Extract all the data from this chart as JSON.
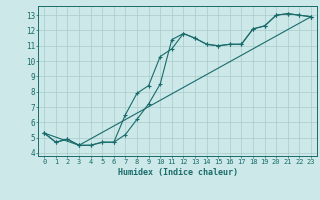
{
  "title": "",
  "xlabel": "Humidex (Indice chaleur)",
  "ylabel": "",
  "background_color": "#cce8e8",
  "grid_color": "#aacccc",
  "line_color": "#1a6b6b",
  "xlim": [
    -0.5,
    23.5
  ],
  "ylim": [
    3.8,
    13.6
  ],
  "yticks": [
    4,
    5,
    6,
    7,
    8,
    9,
    10,
    11,
    12,
    13
  ],
  "xticks": [
    0,
    1,
    2,
    3,
    4,
    5,
    6,
    7,
    8,
    9,
    10,
    11,
    12,
    13,
    14,
    15,
    16,
    17,
    18,
    19,
    20,
    21,
    22,
    23
  ],
  "series1_x": [
    0,
    1,
    2,
    3,
    4,
    5,
    6,
    7,
    8,
    9,
    10,
    11,
    12,
    13,
    14,
    15,
    16,
    17,
    18,
    19,
    20,
    21,
    22,
    23
  ],
  "series1_y": [
    5.3,
    4.7,
    4.9,
    4.5,
    4.5,
    4.7,
    4.7,
    5.2,
    6.2,
    7.2,
    8.5,
    11.4,
    11.8,
    11.5,
    11.1,
    11.0,
    11.1,
    11.1,
    12.1,
    12.3,
    13.0,
    13.1,
    13.0,
    12.9
  ],
  "series2_x": [
    0,
    1,
    2,
    3,
    4,
    5,
    6,
    7,
    8,
    9,
    10,
    11,
    12,
    13,
    14,
    15,
    16,
    17,
    18,
    19,
    20,
    21,
    22,
    23
  ],
  "series2_y": [
    5.3,
    4.7,
    4.9,
    4.5,
    4.5,
    4.7,
    4.7,
    6.5,
    7.9,
    8.4,
    10.3,
    10.8,
    11.8,
    11.5,
    11.1,
    11.0,
    11.1,
    11.1,
    12.1,
    12.3,
    13.0,
    13.1,
    13.0,
    12.9
  ],
  "series3_x": [
    0,
    3,
    23
  ],
  "series3_y": [
    5.3,
    4.5,
    12.9
  ]
}
